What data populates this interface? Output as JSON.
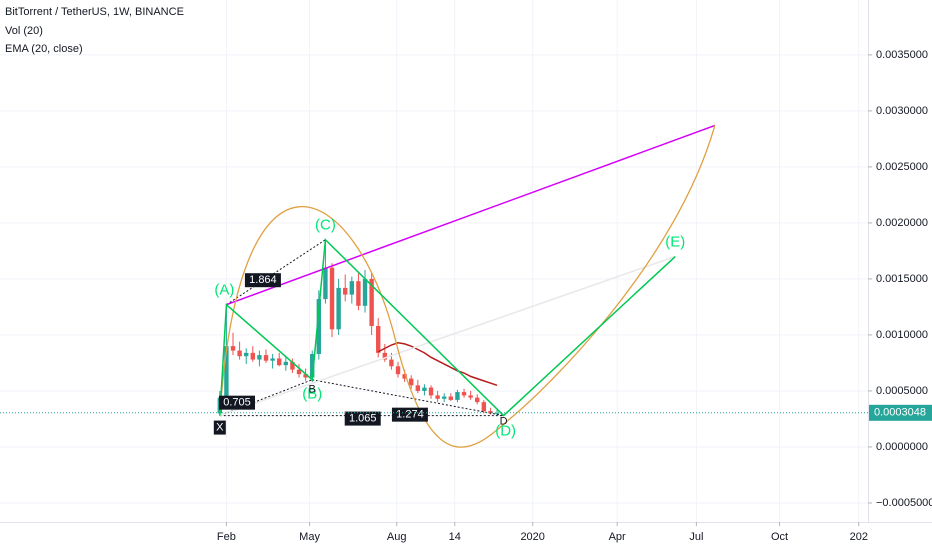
{
  "chart_data": {
    "type": "candlestick",
    "title": "BitTorrent / TetherUS, 1W, BINANCE",
    "indicators": [
      "Vol (20)",
      "EMA (20, close)"
    ],
    "open": [
      0.0003,
      0.00044,
      0.0009,
      0.00086,
      0.00081,
      0.00084,
      0.00078,
      0.00082,
      0.00077,
      0.00079,
      0.00073,
      0.00076,
      0.00069,
      0.00065,
      0.00062,
      0.00083,
      0.00132,
      0.0016,
      0.00105,
      0.00142,
      0.00136,
      0.00148,
      0.00126,
      0.0015,
      0.00108,
      0.00084,
      0.00078,
      0.00072,
      0.00065,
      0.00061,
      0.00055,
      0.0005,
      0.00053,
      0.00046,
      0.00043,
      0.00045,
      0.00042,
      0.00049,
      0.00046,
      0.00044,
      0.0004,
      0.00032,
      0.0003
    ],
    "high": [
      0.0005,
      0.00126,
      0.00102,
      0.00094,
      0.00088,
      0.0009,
      0.00086,
      0.00087,
      0.00083,
      0.00084,
      0.0008,
      0.00079,
      0.00074,
      0.0007,
      0.00086,
      0.0014,
      0.00185,
      0.00164,
      0.0015,
      0.00154,
      0.00152,
      0.00156,
      0.00158,
      0.00156,
      0.00115,
      0.00092,
      0.00084,
      0.00076,
      0.00069,
      0.00064,
      0.0006,
      0.00056,
      0.00055,
      0.0005,
      0.00048,
      0.00048,
      0.00051,
      0.00052,
      0.0005,
      0.00047,
      0.00042,
      0.00035,
      0.00033
    ],
    "low": [
      0.00028,
      0.00042,
      0.00082,
      0.00078,
      0.00074,
      0.00076,
      0.00072,
      0.00075,
      0.0007,
      0.00072,
      0.00068,
      0.00066,
      0.00062,
      0.00059,
      0.00058,
      0.00078,
      0.00128,
      0.00098,
      0.001,
      0.0013,
      0.00128,
      0.00122,
      0.0012,
      0.001,
      0.0008,
      0.00076,
      0.00069,
      0.00062,
      0.00058,
      0.00052,
      0.00048,
      0.00046,
      0.00043,
      0.0004,
      0.0004,
      0.00041,
      0.0004,
      0.00044,
      0.00042,
      0.00038,
      0.0003,
      0.00029,
      0.00028
    ],
    "close": [
      0.00044,
      0.0009,
      0.00086,
      0.00081,
      0.00084,
      0.00078,
      0.00082,
      0.00077,
      0.00079,
      0.00073,
      0.00076,
      0.00069,
      0.00065,
      0.00062,
      0.00083,
      0.00132,
      0.0016,
      0.00105,
      0.00142,
      0.00136,
      0.00148,
      0.00126,
      0.0015,
      0.00108,
      0.00084,
      0.00078,
      0.00072,
      0.00065,
      0.00061,
      0.00055,
      0.0005,
      0.00053,
      0.00046,
      0.00043,
      0.00045,
      0.00042,
      0.00049,
      0.00046,
      0.00044,
      0.0004,
      0.00032,
      0.0003,
      0.0003048
    ],
    "ema": [
      null,
      null,
      null,
      null,
      null,
      null,
      null,
      null,
      null,
      null,
      null,
      null,
      null,
      null,
      null,
      null,
      null,
      null,
      null,
      null,
      null,
      null,
      null,
      null,
      0.00085,
      0.00088,
      0.00091,
      0.00093,
      0.00092,
      0.0009,
      0.00087,
      0.00084,
      0.0008,
      0.00077,
      0.00074,
      0.00071,
      0.00068,
      0.00066,
      0.00063,
      0.00061,
      0.00059,
      0.00057,
      0.00055
    ],
    "ema_color": "#b71c1c",
    "up_color": "#26a69a",
    "down_color": "#ef5350",
    "pattern": [
      {
        "name": "X",
        "label": "X",
        "x": 0,
        "y": 0.00028
      },
      {
        "name": "A",
        "label": "(A)",
        "x": 1,
        "y": 0.00127
      },
      {
        "name": "B",
        "label": "(B)",
        "x": 14,
        "y": 0.0006
      },
      {
        "name": "C",
        "label": "(C)",
        "x": 16,
        "y": 0.00185
      },
      {
        "name": "D",
        "label": "(D)",
        "x": 43,
        "y": 0.00028
      },
      {
        "name": "E",
        "label": "(E)",
        "x": 69,
        "y": 0.0017
      }
    ],
    "projection": {
      "x": 75,
      "y": 0.00287
    },
    "point_marks": [
      "B",
      "D"
    ],
    "ratios": [
      1.864,
      0.705,
      1.274,
      1.065
    ],
    "last_price": 0.0003048,
    "xlim": [
      -33.3,
      98.2
    ],
    "xticks": [
      {
        "value": 1,
        "label": "Feb"
      },
      {
        "value": 13.6,
        "label": "May"
      },
      {
        "value": 26.8,
        "label": "Aug"
      },
      {
        "value": 35.6,
        "label": "14"
      },
      {
        "value": 47.4,
        "label": "2020"
      },
      {
        "value": 60.2,
        "label": "Apr"
      },
      {
        "value": 72.2,
        "label": "Jul"
      },
      {
        "value": 84.8,
        "label": "Oct"
      },
      {
        "value": 96.8,
        "label": "202"
      }
    ],
    "ylim": [
      -0.00067,
      0.00399
    ],
    "yticks": [
      {
        "value": 0.0035,
        "label": "0.0035000"
      },
      {
        "value": 0.003,
        "label": "0.0030000"
      },
      {
        "value": 0.0025,
        "label": "0.0025000"
      },
      {
        "value": 0.002,
        "label": "0.0020000"
      },
      {
        "value": 0.0015,
        "label": "0.0015000"
      },
      {
        "value": 0.001,
        "label": "0.0010000"
      },
      {
        "value": 0.0005,
        "label": "0.0005000"
      },
      {
        "value": 0,
        "label": "0.0000000"
      },
      {
        "value": -0.0005,
        "label": "−0.0005000"
      }
    ],
    "grid": true
  }
}
